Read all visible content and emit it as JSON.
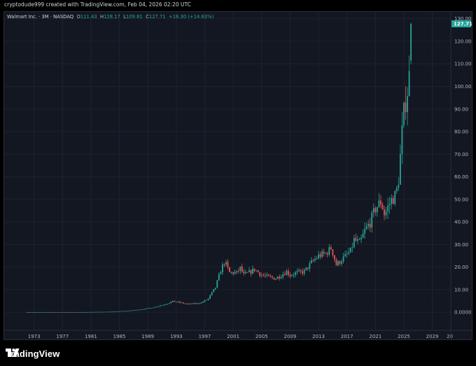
{
  "credit": "cryptodude999 created with TradingView.com, Feb 04, 2026 02:20 UTC",
  "legend": {
    "symbol": "Walmart Inc. · 3M · NASDAQ",
    "open_label": "O",
    "open": "111.43",
    "high_label": "H",
    "high": "128.17",
    "low_label": "L",
    "low": "109.81",
    "close_label": "C",
    "close": "127.71",
    "change": "+16.30 (+14.63%)"
  },
  "price_badge": "127.71",
  "brand": "TradingView",
  "colors": {
    "background": "#131722",
    "up": "#26a69a",
    "down": "#ef5350",
    "grid": "#1e222d",
    "axis_text": "#b2b5be"
  },
  "chart_data": {
    "type": "candlestick",
    "timeframe": "3M",
    "y_ticks": [
      "0.0000",
      "10.00",
      "20.00",
      "30.00",
      "40.00",
      "50.00",
      "60.00",
      "70.00",
      "80.00",
      "90.00",
      "100.00",
      "110.00",
      "120.00",
      "130.00"
    ],
    "x_ticks": [
      "1973",
      "1977",
      "1981",
      "1985",
      "1989",
      "1993",
      "1997",
      "2001",
      "2005",
      "2009",
      "2013",
      "2017",
      "2021",
      "2025",
      "2029",
      "20"
    ],
    "ylim": [
      -8,
      133
    ],
    "xlim": [
      1968.8,
      2031.6
    ],
    "last_close": 127.71,
    "anchors": [
      [
        1972.0,
        0.02
      ],
      [
        1980.0,
        0.05
      ],
      [
        1984.0,
        0.25
      ],
      [
        1986.0,
        0.6
      ],
      [
        1988.0,
        1.2
      ],
      [
        1990.0,
        2.3
      ],
      [
        1991.5,
        3.6
      ],
      [
        1992.5,
        4.8
      ],
      [
        1993.5,
        4.3
      ],
      [
        1994.5,
        3.6
      ],
      [
        1995.5,
        3.8
      ],
      [
        1996.5,
        4.2
      ],
      [
        1997.5,
        6.0
      ],
      [
        1998.5,
        11.0
      ],
      [
        1999.3,
        19.0
      ],
      [
        1999.8,
        22.5
      ],
      [
        2000.5,
        17.5
      ],
      [
        2001.5,
        17.5
      ],
      [
        2002.0,
        19.5
      ],
      [
        2002.5,
        16.5
      ],
      [
        2003.5,
        18.0
      ],
      [
        2004.0,
        19.0
      ],
      [
        2005.0,
        16.5
      ],
      [
        2006.0,
        15.5
      ],
      [
        2007.0,
        15.0
      ],
      [
        2008.5,
        18.0
      ],
      [
        2009.0,
        16.5
      ],
      [
        2010.0,
        17.5
      ],
      [
        2011.0,
        18.0
      ],
      [
        2012.0,
        22.0
      ],
      [
        2013.0,
        25.0
      ],
      [
        2014.0,
        26.0
      ],
      [
        2014.8,
        28.5
      ],
      [
        2015.5,
        21.0
      ],
      [
        2016.5,
        24.0
      ],
      [
        2017.5,
        27.0
      ],
      [
        2018.0,
        32.0
      ],
      [
        2018.8,
        30.5
      ],
      [
        2019.5,
        36.0
      ],
      [
        2020.3,
        40.0
      ],
      [
        2021.0,
        46.0
      ],
      [
        2021.8,
        49.0
      ],
      [
        2022.3,
        43.0
      ],
      [
        2022.8,
        47.0
      ],
      [
        2023.3,
        50.0
      ],
      [
        2023.9,
        52.0
      ],
      [
        2024.3,
        60.0
      ],
      [
        2024.7,
        78.0
      ],
      [
        2025.0,
        88.0
      ],
      [
        2025.3,
        95.0
      ],
      [
        2025.6,
        100.0
      ],
      [
        2025.85,
        111.43
      ],
      [
        2026.05,
        127.71
      ]
    ]
  }
}
